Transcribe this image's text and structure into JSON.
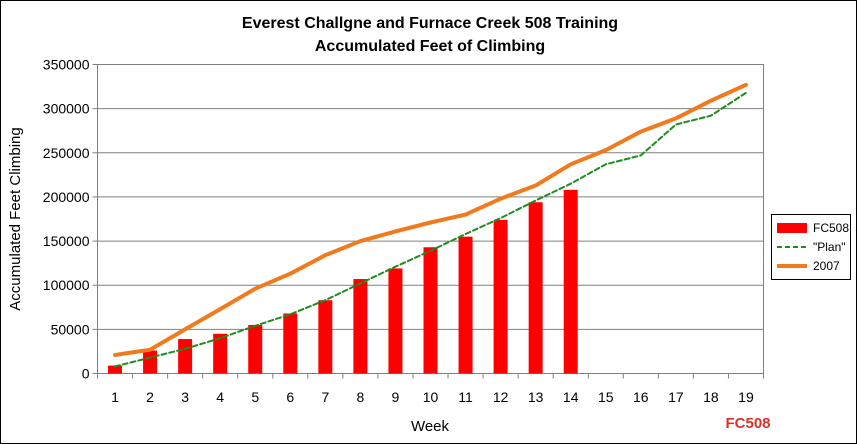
{
  "chart_data": {
    "type": "bar",
    "title": "Everest Challgne and Furnace Creek 508 Training",
    "subtitle": "Accumulated Feet of Climbing",
    "xlabel": "Week",
    "ylabel": "Accumulated Feet Climbing",
    "categories": [
      "1",
      "2",
      "3",
      "4",
      "5",
      "6",
      "7",
      "8",
      "9",
      "10",
      "11",
      "12",
      "13",
      "14",
      "15",
      "16",
      "17",
      "18",
      "19"
    ],
    "ylim": [
      0,
      350000
    ],
    "yticks": [
      0,
      50000,
      100000,
      150000,
      200000,
      250000,
      300000,
      350000
    ],
    "grid": true,
    "legend_position": "right",
    "series": [
      {
        "name": "FC508",
        "type": "bar",
        "color": "#ff0000",
        "values": [
          9000,
          26000,
          39000,
          45000,
          55000,
          68000,
          83000,
          107000,
          119000,
          143000,
          155000,
          174000,
          194000,
          208000,
          null,
          null,
          null,
          null,
          null
        ]
      },
      {
        "name": "\"Plan\"",
        "type": "line",
        "style": "dashed",
        "color": "#1e8c1e",
        "values": [
          8000,
          18000,
          28000,
          40000,
          54000,
          67000,
          83000,
          102000,
          121000,
          139000,
          158000,
          176000,
          196000,
          215000,
          237000,
          247000,
          282000,
          292000,
          318000
        ]
      },
      {
        "name": "2007",
        "type": "line",
        "style": "solid",
        "color": "#f07a1c",
        "values": [
          21000,
          27000,
          50000,
          73000,
          96000,
          113000,
          134000,
          150000,
          161000,
          171000,
          180000,
          198000,
          213000,
          237000,
          253000,
          274000,
          289000,
          309000,
          327000
        ]
      }
    ]
  },
  "watermark": {
    "text": "FC508",
    "color": "#d8332a"
  }
}
